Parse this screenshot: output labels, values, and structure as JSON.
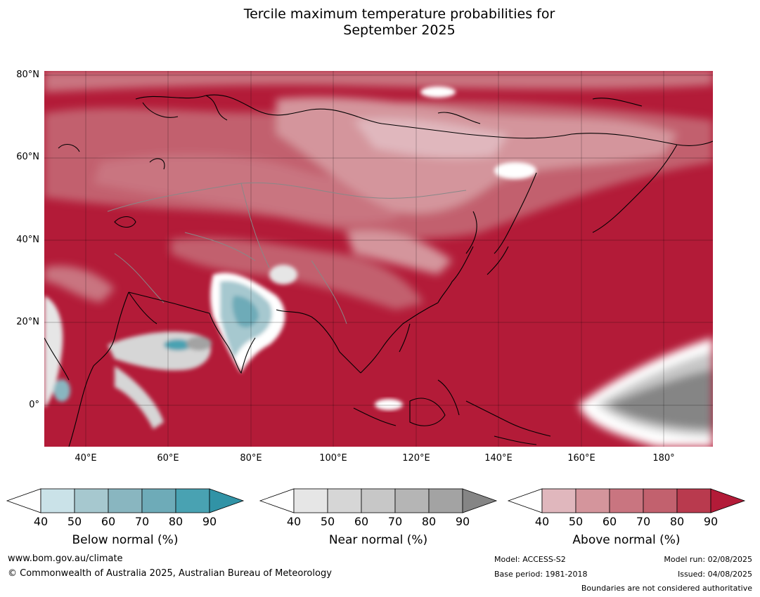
{
  "title": {
    "line1": "Tercile maximum temperature probabilities for",
    "line2": "September 2025"
  },
  "map": {
    "lat_labels": [
      "80°N",
      "60°N",
      "40°N",
      "20°N",
      "0°"
    ],
    "lon_labels": [
      "40°E",
      "60°E",
      "80°E",
      "100°E",
      "120°E",
      "140°E",
      "160°E",
      "180°"
    ],
    "colors": {
      "above_base": "#b31b38",
      "land_outline": "#000000",
      "border": "#888888"
    }
  },
  "colorbars": [
    {
      "label": "Below normal (%)",
      "ticks": [
        "40",
        "50",
        "60",
        "70",
        "80",
        "90"
      ],
      "colors": [
        "#ffffff",
        "#cae2e8",
        "#a6c8cf",
        "#89b6c0",
        "#6eabb8",
        "#49a2b2",
        "#3193a6"
      ]
    },
    {
      "label": "Near normal (%)",
      "ticks": [
        "40",
        "50",
        "60",
        "70",
        "80",
        "90"
      ],
      "colors": [
        "#ffffff",
        "#e6e6e6",
        "#d6d6d6",
        "#c7c7c7",
        "#b5b5b5",
        "#a3a3a3",
        "#858585"
      ]
    },
    {
      "label": "Above normal (%)",
      "ticks": [
        "40",
        "50",
        "60",
        "70",
        "80",
        "90"
      ],
      "colors": [
        "#ffffff",
        "#e0b7bd",
        "#d4959c",
        "#c97580",
        "#c2616e",
        "#b93a4e",
        "#b31b38"
      ]
    }
  ],
  "footer": {
    "website": "www.bom.gov.au/climate",
    "copyright": "© Commonwealth of Australia 2025, Australian Bureau of Meteorology",
    "model": "Model: ACCESS-S2",
    "base_period": "Base period: 1981-2018",
    "model_run": "Model run: 02/08/2025",
    "issued": "Issued: 04/08/2025",
    "disclaimer": "Boundaries are not considered authoritative"
  }
}
